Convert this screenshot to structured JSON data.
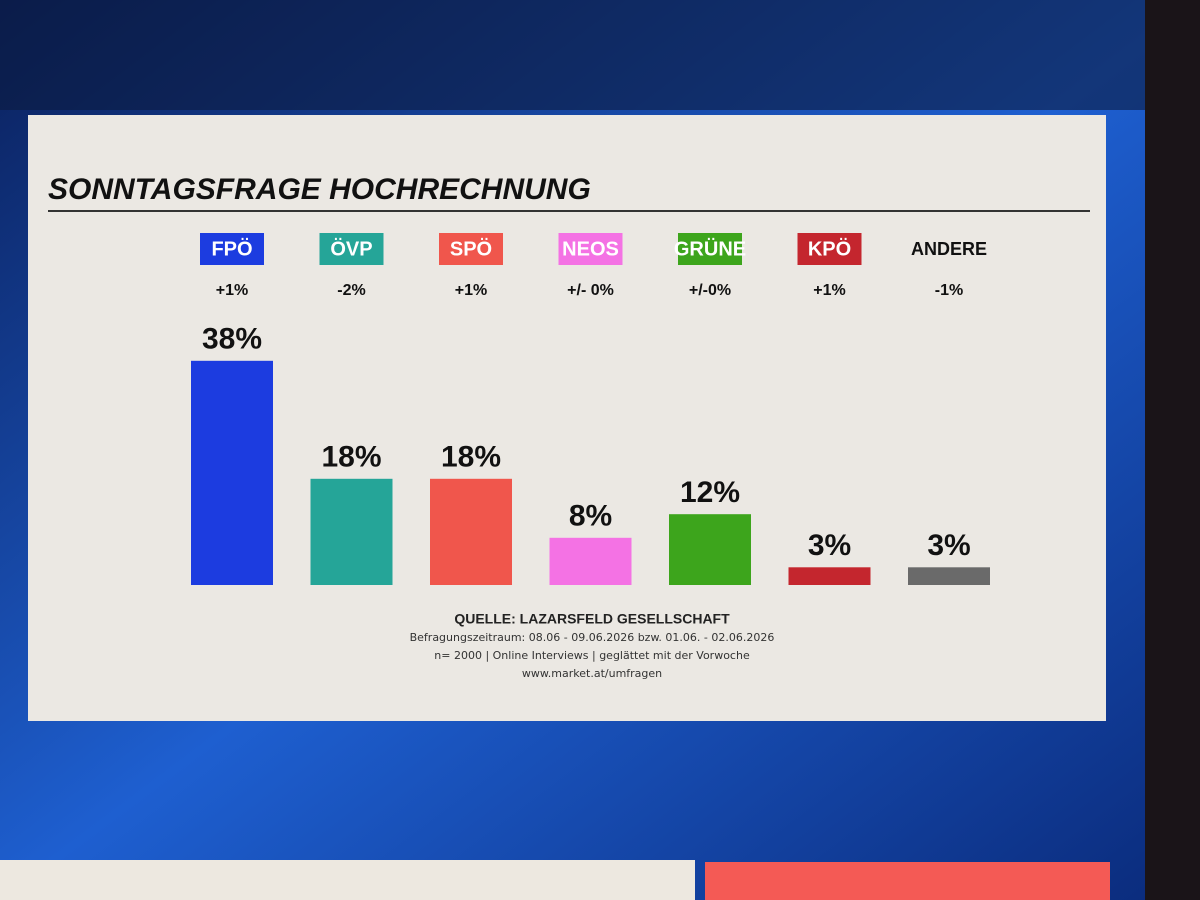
{
  "chart_data": {
    "type": "bar",
    "title": "SONNTAGSFRAGE HOCHRECHNUNG",
    "categories": [
      "FPÖ",
      "ÖVP",
      "SPÖ",
      "NEOS",
      "GRÜNE",
      "KPÖ",
      "ANDERE"
    ],
    "changes": [
      "+1%",
      "-2%",
      "+1%",
      "+/- 0%",
      "+/-0%",
      "+1%",
      "-1%"
    ],
    "values": [
      38,
      18,
      18,
      8,
      12,
      3,
      3
    ],
    "value_labels": [
      "38%",
      "18%",
      "18%",
      "8%",
      "12%",
      "3%",
      "3%"
    ],
    "colors": [
      "#1c3ce0",
      "#25a598",
      "#f0564c",
      "#f472e4",
      "#3da51c",
      "#c4262e",
      "#6a6a6a"
    ],
    "source": "QUELLE: LAZARSFELD GESELLSCHAFT",
    "notes": [
      "Befragungszeitraum: 08.06 - 09.06.2026 bzw. 01.06. - 02.06.2026",
      "n= 2000 | Online Interviews | geglättet mit der Vorwoche",
      "www.market.at/umfragen"
    ]
  }
}
